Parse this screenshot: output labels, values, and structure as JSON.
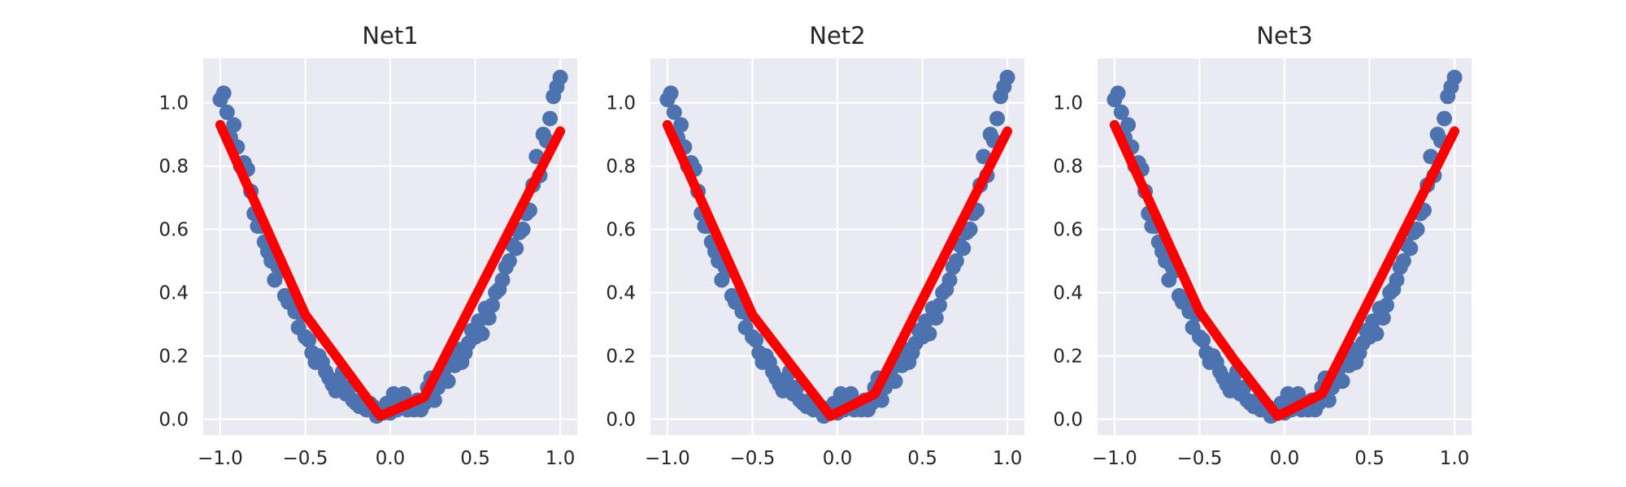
{
  "chart_data": [
    {
      "type": "scatter",
      "title": "Net1",
      "xlim": [
        -1.1,
        1.1
      ],
      "ylim": [
        -0.05,
        1.14
      ],
      "xticks": [
        -1.0,
        -0.5,
        0.0,
        0.5,
        1.0
      ],
      "xtick_labels": [
        "−1.0",
        "−0.5",
        "0.0",
        "0.5",
        "1.0"
      ],
      "yticks": [
        0.0,
        0.2,
        0.4,
        0.6,
        0.8,
        1.0
      ],
      "ytick_labels": [
        "0.0",
        "0.2",
        "0.4",
        "0.6",
        "0.8",
        "1.0"
      ],
      "grid": true,
      "series": [
        {
          "kind": "scatter",
          "color": "#4c72b0",
          "x": [
            -1.0,
            -0.98,
            -0.96,
            -0.94,
            -0.92,
            -0.9,
            -0.88,
            -0.86,
            -0.84,
            -0.82,
            -0.8,
            -0.78,
            -0.76,
            -0.74,
            -0.72,
            -0.7,
            -0.68,
            -0.66,
            -0.64,
            -0.62,
            -0.6,
            -0.58,
            -0.56,
            -0.54,
            -0.52,
            -0.5,
            -0.48,
            -0.46,
            -0.44,
            -0.42,
            -0.4,
            -0.38,
            -0.36,
            -0.34,
            -0.32,
            -0.3,
            -0.28,
            -0.26,
            -0.24,
            -0.22,
            -0.2,
            -0.18,
            -0.16,
            -0.14,
            -0.12,
            -0.1,
            -0.08,
            -0.06,
            -0.04,
            -0.02,
            0.0,
            0.02,
            0.04,
            0.06,
            0.08,
            0.1,
            0.12,
            0.14,
            0.16,
            0.18,
            0.2,
            0.22,
            0.24,
            0.26,
            0.28,
            0.3,
            0.32,
            0.34,
            0.36,
            0.38,
            0.4,
            0.42,
            0.44,
            0.46,
            0.48,
            0.5,
            0.52,
            0.54,
            0.56,
            0.58,
            0.6,
            0.62,
            0.64,
            0.66,
            0.68,
            0.7,
            0.72,
            0.74,
            0.76,
            0.78,
            0.8,
            0.82,
            0.84,
            0.86,
            0.88,
            0.9,
            0.92,
            0.94,
            0.96,
            0.98,
            1.0
          ],
          "y": [
            1.01,
            1.03,
            0.97,
            0.89,
            0.93,
            0.86,
            0.8,
            0.81,
            0.79,
            0.72,
            0.65,
            0.61,
            0.61,
            0.56,
            0.53,
            0.5,
            0.44,
            0.48,
            0.47,
            0.39,
            0.37,
            0.37,
            0.34,
            0.29,
            0.33,
            0.26,
            0.25,
            0.21,
            0.18,
            0.2,
            0.18,
            0.15,
            0.13,
            0.11,
            0.09,
            0.12,
            0.15,
            0.08,
            0.1,
            0.06,
            0.05,
            0.04,
            0.06,
            0.03,
            0.05,
            0.04,
            0.01,
            0.02,
            0.02,
            0.05,
            0.02,
            0.08,
            0.03,
            0.05,
            0.08,
            0.03,
            0.05,
            0.03,
            0.06,
            0.03,
            0.05,
            0.1,
            0.13,
            0.06,
            0.1,
            0.12,
            0.16,
            0.12,
            0.19,
            0.17,
            0.22,
            0.18,
            0.21,
            0.24,
            0.28,
            0.26,
            0.31,
            0.27,
            0.35,
            0.32,
            0.36,
            0.4,
            0.41,
            0.44,
            0.48,
            0.5,
            0.55,
            0.54,
            0.59,
            0.6,
            0.65,
            0.66,
            0.74,
            0.83,
            0.77,
            0.9,
            0.88,
            0.95,
            1.02,
            1.05,
            1.08
          ]
        },
        {
          "kind": "line",
          "color": "#ff0000",
          "x": [
            -1.0,
            -0.5,
            -0.32,
            -0.06,
            0.2,
            1.0
          ],
          "y": [
            0.93,
            0.33,
            0.2,
            0.01,
            0.07,
            0.91
          ]
        }
      ]
    },
    {
      "type": "scatter",
      "title": "Net2",
      "xlim": [
        -1.1,
        1.1
      ],
      "ylim": [
        -0.05,
        1.14
      ],
      "xticks": [
        -1.0,
        -0.5,
        0.0,
        0.5,
        1.0
      ],
      "xtick_labels": [
        "−1.0",
        "−0.5",
        "0.0",
        "0.5",
        "1.0"
      ],
      "yticks": [
        0.0,
        0.2,
        0.4,
        0.6,
        0.8,
        1.0
      ],
      "ytick_labels": [
        "0.0",
        "0.2",
        "0.4",
        "0.6",
        "0.8",
        "1.0"
      ],
      "grid": true,
      "series": [
        {
          "kind": "scatter",
          "color": "#4c72b0",
          "x": [
            -1.0,
            -0.98,
            -0.96,
            -0.94,
            -0.92,
            -0.9,
            -0.88,
            -0.86,
            -0.84,
            -0.82,
            -0.8,
            -0.78,
            -0.76,
            -0.74,
            -0.72,
            -0.7,
            -0.68,
            -0.66,
            -0.64,
            -0.62,
            -0.6,
            -0.58,
            -0.56,
            -0.54,
            -0.52,
            -0.5,
            -0.48,
            -0.46,
            -0.44,
            -0.42,
            -0.4,
            -0.38,
            -0.36,
            -0.34,
            -0.32,
            -0.3,
            -0.28,
            -0.26,
            -0.24,
            -0.22,
            -0.2,
            -0.18,
            -0.16,
            -0.14,
            -0.12,
            -0.1,
            -0.08,
            -0.06,
            -0.04,
            -0.02,
            0.0,
            0.02,
            0.04,
            0.06,
            0.08,
            0.1,
            0.12,
            0.14,
            0.16,
            0.18,
            0.2,
            0.22,
            0.24,
            0.26,
            0.28,
            0.3,
            0.32,
            0.34,
            0.36,
            0.38,
            0.4,
            0.42,
            0.44,
            0.46,
            0.48,
            0.5,
            0.52,
            0.54,
            0.56,
            0.58,
            0.6,
            0.62,
            0.64,
            0.66,
            0.68,
            0.7,
            0.72,
            0.74,
            0.76,
            0.78,
            0.8,
            0.82,
            0.84,
            0.86,
            0.88,
            0.9,
            0.92,
            0.94,
            0.96,
            0.98,
            1.0
          ],
          "y": [
            1.01,
            1.03,
            0.97,
            0.89,
            0.93,
            0.86,
            0.8,
            0.81,
            0.79,
            0.72,
            0.65,
            0.61,
            0.61,
            0.56,
            0.53,
            0.5,
            0.44,
            0.48,
            0.47,
            0.39,
            0.37,
            0.37,
            0.34,
            0.29,
            0.33,
            0.26,
            0.25,
            0.21,
            0.18,
            0.2,
            0.18,
            0.15,
            0.13,
            0.11,
            0.09,
            0.12,
            0.15,
            0.08,
            0.1,
            0.06,
            0.05,
            0.04,
            0.06,
            0.03,
            0.05,
            0.04,
            0.01,
            0.02,
            0.02,
            0.05,
            0.02,
            0.08,
            0.03,
            0.05,
            0.08,
            0.03,
            0.05,
            0.03,
            0.06,
            0.03,
            0.05,
            0.1,
            0.13,
            0.06,
            0.1,
            0.12,
            0.16,
            0.12,
            0.19,
            0.17,
            0.22,
            0.18,
            0.21,
            0.24,
            0.28,
            0.26,
            0.31,
            0.27,
            0.35,
            0.32,
            0.36,
            0.4,
            0.41,
            0.44,
            0.48,
            0.5,
            0.55,
            0.54,
            0.59,
            0.6,
            0.65,
            0.66,
            0.74,
            0.83,
            0.77,
            0.9,
            0.88,
            0.95,
            1.02,
            1.05,
            1.08
          ]
        },
        {
          "kind": "line",
          "color": "#ff0000",
          "x": [
            -1.0,
            -0.5,
            -0.3,
            -0.04,
            0.22,
            1.0
          ],
          "y": [
            0.93,
            0.33,
            0.19,
            0.01,
            0.08,
            0.91
          ]
        }
      ]
    },
    {
      "type": "scatter",
      "title": "Net3",
      "xlim": [
        -1.1,
        1.1
      ],
      "ylim": [
        -0.05,
        1.14
      ],
      "xticks": [
        -1.0,
        -0.5,
        0.0,
        0.5,
        1.0
      ],
      "xtick_labels": [
        "−1.0",
        "−0.5",
        "0.0",
        "0.5",
        "1.0"
      ],
      "yticks": [
        0.0,
        0.2,
        0.4,
        0.6,
        0.8,
        1.0
      ],
      "ytick_labels": [
        "0.0",
        "0.2",
        "0.4",
        "0.6",
        "0.8",
        "1.0"
      ],
      "grid": true,
      "series": [
        {
          "kind": "scatter",
          "color": "#4c72b0",
          "x": [
            -1.0,
            -0.98,
            -0.96,
            -0.94,
            -0.92,
            -0.9,
            -0.88,
            -0.86,
            -0.84,
            -0.82,
            -0.8,
            -0.78,
            -0.76,
            -0.74,
            -0.72,
            -0.7,
            -0.68,
            -0.66,
            -0.64,
            -0.62,
            -0.6,
            -0.58,
            -0.56,
            -0.54,
            -0.52,
            -0.5,
            -0.48,
            -0.46,
            -0.44,
            -0.42,
            -0.4,
            -0.38,
            -0.36,
            -0.34,
            -0.32,
            -0.3,
            -0.28,
            -0.26,
            -0.24,
            -0.22,
            -0.2,
            -0.18,
            -0.16,
            -0.14,
            -0.12,
            -0.1,
            -0.08,
            -0.06,
            -0.04,
            -0.02,
            0.0,
            0.02,
            0.04,
            0.06,
            0.08,
            0.1,
            0.12,
            0.14,
            0.16,
            0.18,
            0.2,
            0.22,
            0.24,
            0.26,
            0.28,
            0.3,
            0.32,
            0.34,
            0.36,
            0.38,
            0.4,
            0.42,
            0.44,
            0.46,
            0.48,
            0.5,
            0.52,
            0.54,
            0.56,
            0.58,
            0.6,
            0.62,
            0.64,
            0.66,
            0.68,
            0.7,
            0.72,
            0.74,
            0.76,
            0.78,
            0.8,
            0.82,
            0.84,
            0.86,
            0.88,
            0.9,
            0.92,
            0.94,
            0.96,
            0.98,
            1.0
          ],
          "y": [
            1.01,
            1.03,
            0.97,
            0.89,
            0.93,
            0.86,
            0.8,
            0.81,
            0.79,
            0.72,
            0.65,
            0.61,
            0.61,
            0.56,
            0.53,
            0.5,
            0.44,
            0.48,
            0.47,
            0.39,
            0.37,
            0.37,
            0.34,
            0.29,
            0.33,
            0.26,
            0.25,
            0.21,
            0.18,
            0.2,
            0.18,
            0.15,
            0.13,
            0.11,
            0.09,
            0.12,
            0.15,
            0.08,
            0.1,
            0.06,
            0.05,
            0.04,
            0.06,
            0.03,
            0.05,
            0.04,
            0.01,
            0.02,
            0.02,
            0.05,
            0.02,
            0.08,
            0.03,
            0.05,
            0.08,
            0.03,
            0.05,
            0.03,
            0.06,
            0.03,
            0.05,
            0.1,
            0.13,
            0.06,
            0.1,
            0.12,
            0.16,
            0.12,
            0.19,
            0.17,
            0.22,
            0.18,
            0.21,
            0.24,
            0.28,
            0.26,
            0.31,
            0.27,
            0.35,
            0.32,
            0.36,
            0.4,
            0.41,
            0.44,
            0.48,
            0.5,
            0.55,
            0.54,
            0.59,
            0.6,
            0.65,
            0.66,
            0.74,
            0.83,
            0.77,
            0.9,
            0.88,
            0.95,
            1.02,
            1.05,
            1.08
          ]
        },
        {
          "kind": "line",
          "color": "#ff0000",
          "x": [
            -1.0,
            -0.5,
            -0.3,
            -0.04,
            0.22,
            1.0
          ],
          "y": [
            0.93,
            0.34,
            0.19,
            0.01,
            0.08,
            0.91
          ]
        }
      ]
    }
  ]
}
